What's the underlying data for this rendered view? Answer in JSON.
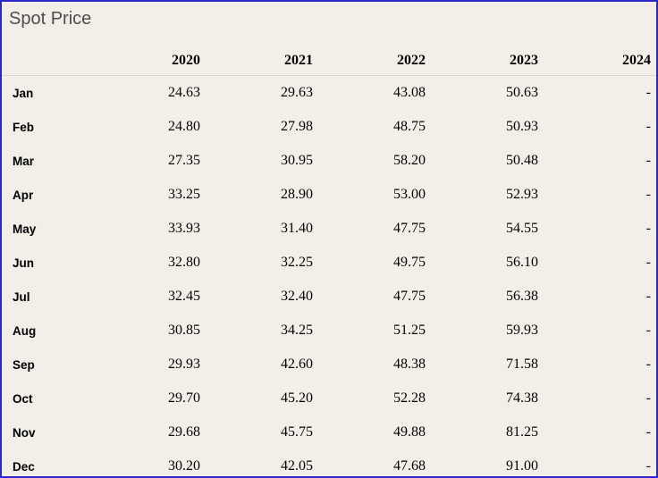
{
  "title": "Spot Price",
  "colors": {
    "background": "#f2efe9",
    "window_border": "#2a2ac8",
    "title_text": "#4d4d4d",
    "header_separator": "#d8d5ce",
    "table_text": "#000000"
  },
  "table": {
    "columns": [
      "2020",
      "2021",
      "2022",
      "2023",
      "2024"
    ],
    "rows": [
      {
        "month": "Jan",
        "values": [
          "24.63",
          "29.63",
          "43.08",
          "50.63",
          "-"
        ]
      },
      {
        "month": "Feb",
        "values": [
          "24.80",
          "27.98",
          "48.75",
          "50.93",
          "-"
        ]
      },
      {
        "month": "Mar",
        "values": [
          "27.35",
          "30.95",
          "58.20",
          "50.48",
          "-"
        ]
      },
      {
        "month": "Apr",
        "values": [
          "33.25",
          "28.90",
          "53.00",
          "52.93",
          "-"
        ]
      },
      {
        "month": "May",
        "values": [
          "33.93",
          "31.40",
          "47.75",
          "54.55",
          "-"
        ]
      },
      {
        "month": "Jun",
        "values": [
          "32.80",
          "32.25",
          "49.75",
          "56.10",
          "-"
        ]
      },
      {
        "month": "Jul",
        "values": [
          "32.45",
          "32.40",
          "47.75",
          "56.38",
          "-"
        ]
      },
      {
        "month": "Aug",
        "values": [
          "30.85",
          "34.25",
          "51.25",
          "59.93",
          "-"
        ]
      },
      {
        "month": "Sep",
        "values": [
          "29.93",
          "42.60",
          "48.38",
          "71.58",
          "-"
        ]
      },
      {
        "month": "Oct",
        "values": [
          "29.70",
          "45.20",
          "52.28",
          "74.38",
          "-"
        ]
      },
      {
        "month": "Nov",
        "values": [
          "29.68",
          "45.75",
          "49.88",
          "81.25",
          "-"
        ]
      },
      {
        "month": "Dec",
        "values": [
          "30.20",
          "42.05",
          "47.68",
          "91.00",
          "-"
        ]
      }
    ]
  },
  "chart_data": {
    "type": "table",
    "title": "Spot Price",
    "categories": [
      "Jan",
      "Feb",
      "Mar",
      "Apr",
      "May",
      "Jun",
      "Jul",
      "Aug",
      "Sep",
      "Oct",
      "Nov",
      "Dec"
    ],
    "series": [
      {
        "name": "2020",
        "values": [
          24.63,
          24.8,
          27.35,
          33.25,
          33.93,
          32.8,
          32.45,
          30.85,
          29.93,
          29.7,
          29.68,
          30.2
        ]
      },
      {
        "name": "2021",
        "values": [
          29.63,
          27.98,
          30.95,
          28.9,
          31.4,
          32.25,
          32.4,
          34.25,
          42.6,
          45.2,
          45.75,
          42.05
        ]
      },
      {
        "name": "2022",
        "values": [
          43.08,
          48.75,
          58.2,
          53.0,
          47.75,
          49.75,
          47.75,
          51.25,
          48.38,
          52.28,
          49.88,
          47.68
        ]
      },
      {
        "name": "2023",
        "values": [
          50.63,
          50.93,
          50.48,
          52.93,
          54.55,
          56.1,
          56.38,
          59.93,
          71.58,
          74.38,
          81.25,
          91.0
        ]
      },
      {
        "name": "2024",
        "values": [
          null,
          null,
          null,
          null,
          null,
          null,
          null,
          null,
          null,
          null,
          null,
          null
        ]
      }
    ]
  }
}
